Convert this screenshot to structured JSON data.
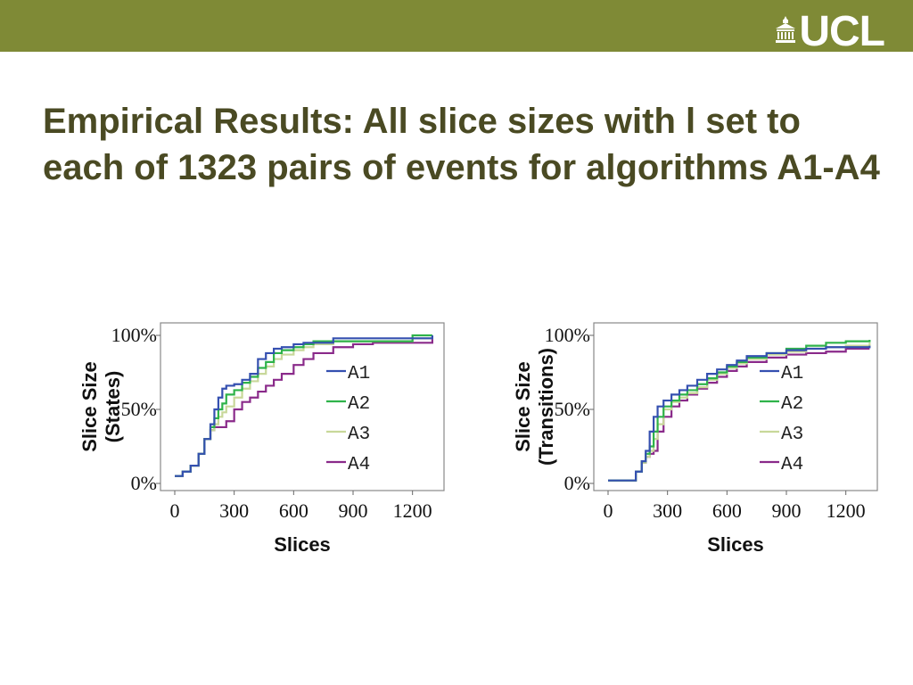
{
  "header": {
    "logo_text": "UCL",
    "title": "Empirical Results: All slice sizes with l set to each of 1323 pairs of events for algorithms A1-A4"
  },
  "colors": {
    "topbar": "#7f8a36",
    "title": "#4a4a23",
    "A1": "#3550b0",
    "A2": "#2fb34a",
    "A3": "#c8d89a",
    "A4": "#8a2a8a"
  },
  "chart_data": [
    {
      "type": "line",
      "xlabel": "Slices",
      "ylabel": "Slice Size (States)",
      "ylabel_lines": [
        "Slice Size",
        "(States)"
      ],
      "xlim": [
        0,
        1323
      ],
      "ylim": [
        0,
        100
      ],
      "x_ticks": [
        "0",
        "300",
        "600",
        "900",
        "1200"
      ],
      "x_tick_values": [
        0,
        300,
        600,
        900,
        1200
      ],
      "y_ticks": [
        "0%",
        "50%",
        "100%"
      ],
      "y_tick_values": [
        0,
        50,
        100
      ],
      "legend": "right",
      "series": [
        {
          "name": "A1",
          "x": [
            0,
            40,
            80,
            120,
            150,
            180,
            200,
            220,
            240,
            260,
            300,
            340,
            380,
            420,
            460,
            500,
            540,
            600,
            650,
            700,
            800,
            900,
            1000,
            1100,
            1200,
            1300
          ],
          "y": [
            5,
            8,
            12,
            20,
            30,
            40,
            50,
            58,
            64,
            66,
            67,
            70,
            74,
            84,
            88,
            91,
            92,
            94,
            95,
            95,
            98,
            98,
            98,
            98,
            98,
            100
          ]
        },
        {
          "name": "A2",
          "x": [
            0,
            40,
            80,
            120,
            150,
            180,
            200,
            220,
            240,
            260,
            300,
            340,
            380,
            420,
            460,
            500,
            540,
            600,
            650,
            700,
            800,
            900,
            1000,
            1100,
            1200,
            1300
          ],
          "y": [
            5,
            8,
            12,
            20,
            30,
            38,
            44,
            50,
            54,
            60,
            63,
            68,
            72,
            78,
            82,
            88,
            90,
            92,
            94,
            96,
            96,
            96,
            96,
            96,
            100,
            100
          ]
        },
        {
          "name": "A3",
          "x": [
            0,
            40,
            80,
            120,
            150,
            180,
            200,
            220,
            240,
            260,
            300,
            340,
            380,
            420,
            460,
            500,
            540,
            600,
            650,
            700,
            800,
            900,
            1000,
            1100,
            1200,
            1300
          ],
          "y": [
            5,
            8,
            12,
            20,
            30,
            36,
            40,
            45,
            48,
            52,
            58,
            64,
            69,
            74,
            79,
            84,
            87,
            90,
            92,
            94,
            96,
            96,
            96,
            96,
            98,
            100
          ]
        },
        {
          "name": "A4",
          "x": [
            0,
            40,
            80,
            120,
            150,
            180,
            200,
            220,
            240,
            260,
            300,
            340,
            380,
            420,
            460,
            500,
            540,
            600,
            650,
            700,
            800,
            900,
            1000,
            1100,
            1200,
            1300
          ],
          "y": [
            5,
            8,
            12,
            20,
            30,
            36,
            38,
            38,
            38,
            42,
            50,
            55,
            58,
            62,
            66,
            70,
            74,
            80,
            84,
            88,
            92,
            94,
            95,
            95,
            95,
            98
          ]
        }
      ]
    },
    {
      "type": "line",
      "xlabel": "Slices",
      "ylabel": "Slice Size (Transitions)",
      "ylabel_lines": [
        "Slice Size",
        "(Transitions)"
      ],
      "xlim": [
        0,
        1323
      ],
      "ylim": [
        0,
        100
      ],
      "x_ticks": [
        "0",
        "300",
        "600",
        "900",
        "1200"
      ],
      "x_tick_values": [
        0,
        300,
        600,
        900,
        1200
      ],
      "y_ticks": [
        "0%",
        "50%",
        "100%"
      ],
      "y_tick_values": [
        0,
        50,
        100
      ],
      "legend": "right",
      "series": [
        {
          "name": "A1",
          "x": [
            0,
            100,
            140,
            170,
            190,
            210,
            230,
            250,
            280,
            320,
            360,
            400,
            450,
            500,
            550,
            600,
            650,
            700,
            800,
            900,
            1000,
            1100,
            1200,
            1320
          ],
          "y": [
            2,
            2,
            8,
            15,
            22,
            35,
            45,
            52,
            56,
            60,
            63,
            66,
            70,
            74,
            77,
            80,
            83,
            86,
            88,
            90,
            91,
            92,
            92,
            93
          ]
        },
        {
          "name": "A2",
          "x": [
            0,
            100,
            140,
            170,
            190,
            210,
            230,
            250,
            280,
            320,
            360,
            400,
            450,
            500,
            550,
            600,
            650,
            700,
            800,
            900,
            1000,
            1100,
            1200,
            1320
          ],
          "y": [
            2,
            2,
            8,
            15,
            20,
            25,
            35,
            45,
            52,
            56,
            60,
            63,
            67,
            71,
            75,
            79,
            82,
            85,
            88,
            91,
            93,
            95,
            96,
            97
          ]
        },
        {
          "name": "A3",
          "x": [
            0,
            100,
            140,
            170,
            190,
            210,
            230,
            250,
            280,
            320,
            360,
            400,
            450,
            500,
            550,
            600,
            650,
            700,
            800,
            900,
            1000,
            1100,
            1200,
            1320
          ],
          "y": [
            2,
            2,
            8,
            14,
            18,
            22,
            30,
            40,
            50,
            55,
            58,
            61,
            65,
            70,
            74,
            78,
            81,
            84,
            87,
            89,
            91,
            92,
            93,
            95
          ]
        },
        {
          "name": "A4",
          "x": [
            0,
            100,
            140,
            170,
            190,
            210,
            230,
            250,
            280,
            320,
            360,
            400,
            450,
            500,
            550,
            600,
            650,
            700,
            800,
            900,
            1000,
            1100,
            1200,
            1320
          ],
          "y": [
            2,
            2,
            8,
            14,
            18,
            20,
            22,
            35,
            45,
            52,
            56,
            60,
            64,
            68,
            72,
            76,
            79,
            82,
            85,
            87,
            88,
            89,
            91,
            91
          ]
        }
      ]
    }
  ]
}
